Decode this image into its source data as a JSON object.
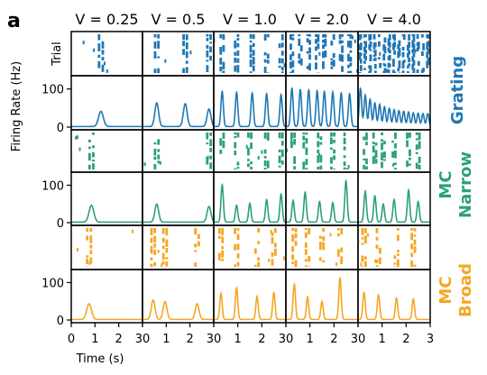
{
  "panel_label": "a",
  "chart_data": {
    "type": "raster+psth-grid",
    "columns": [
      "V = 0.25",
      "V = 0.5",
      "V = 1.0",
      "V = 2.0",
      "V = 4.0"
    ],
    "rows": [
      {
        "stimulus_label": [
          "Grating"
        ],
        "color": "#1f77b4"
      },
      {
        "stimulus_label": [
          "MC",
          "Narrow"
        ],
        "color": "#2ca07a"
      },
      {
        "stimulus_label": [
          "MC",
          "Broad"
        ],
        "color": "#f5a623"
      }
    ],
    "raster_ylabel": "Trial",
    "rate_ylabel": "Firing Rate (Hz)",
    "rate_yticks": [
      0,
      100
    ],
    "ylim": [
      0,
      130
    ],
    "xlabel": "Time (s)",
    "xlim": [
      0,
      3
    ],
    "xticks": [
      0,
      1,
      2,
      3
    ],
    "xticklabels": [
      "0",
      "1",
      "2",
      "30",
      "1",
      "2",
      "30",
      "1",
      "2",
      "30",
      "1",
      "2",
      "30",
      "1",
      "2",
      "3"
    ],
    "psth_peaks": [
      [
        [
          {
            "t": 1.25,
            "rate": 40
          }
        ],
        [
          {
            "t": 0.6,
            "rate": 62
          },
          {
            "t": 1.8,
            "rate": 60
          },
          {
            "t": 2.8,
            "rate": 46
          }
        ],
        [
          {
            "t": 0.35,
            "rate": 92
          },
          {
            "t": 0.95,
            "rate": 90
          },
          {
            "t": 1.6,
            "rate": 88
          },
          {
            "t": 2.2,
            "rate": 86
          },
          {
            "t": 2.8,
            "rate": 84
          }
        ],
        [
          {
            "t": 0.25,
            "rate": 100
          },
          {
            "t": 0.6,
            "rate": 98
          },
          {
            "t": 0.95,
            "rate": 96
          },
          {
            "t": 1.3,
            "rate": 94
          },
          {
            "t": 1.6,
            "rate": 92
          },
          {
            "t": 1.95,
            "rate": 90
          },
          {
            "t": 2.3,
            "rate": 88
          },
          {
            "t": 2.65,
            "rate": 86
          }
        ],
        [
          {
            "t": 0.1,
            "rate": 100
          },
          {
            "t": 0.3,
            "rate": 82
          },
          {
            "t": 0.5,
            "rate": 72
          },
          {
            "t": 0.7,
            "rate": 62
          },
          {
            "t": 0.9,
            "rate": 58
          },
          {
            "t": 1.1,
            "rate": 52
          },
          {
            "t": 1.3,
            "rate": 48
          },
          {
            "t": 1.5,
            "rate": 44
          },
          {
            "t": 1.7,
            "rate": 42
          },
          {
            "t": 1.9,
            "rate": 40
          },
          {
            "t": 2.1,
            "rate": 38
          },
          {
            "t": 2.3,
            "rate": 36
          },
          {
            "t": 2.5,
            "rate": 35
          },
          {
            "t": 2.7,
            "rate": 34
          },
          {
            "t": 2.9,
            "rate": 34
          }
        ]
      ],
      [
        [
          {
            "t": 0.85,
            "rate": 45
          }
        ],
        [
          {
            "t": 0.6,
            "rate": 48
          },
          {
            "t": 2.8,
            "rate": 42
          }
        ],
        [
          {
            "t": 0.35,
            "rate": 100
          },
          {
            "t": 0.95,
            "rate": 45
          },
          {
            "t": 1.5,
            "rate": 50
          },
          {
            "t": 2.2,
            "rate": 60
          },
          {
            "t": 2.8,
            "rate": 75
          }
        ],
        [
          {
            "t": 0.3,
            "rate": 58
          },
          {
            "t": 0.8,
            "rate": 80
          },
          {
            "t": 1.4,
            "rate": 55
          },
          {
            "t": 1.95,
            "rate": 52
          },
          {
            "t": 2.5,
            "rate": 110
          }
        ],
        [
          {
            "t": 0.3,
            "rate": 82
          },
          {
            "t": 0.7,
            "rate": 70
          },
          {
            "t": 1.05,
            "rate": 48
          },
          {
            "t": 1.5,
            "rate": 60
          },
          {
            "t": 2.1,
            "rate": 85
          },
          {
            "t": 2.5,
            "rate": 55
          }
        ]
      ],
      [
        [
          {
            "t": 0.75,
            "rate": 42
          }
        ],
        [
          {
            "t": 0.45,
            "rate": 52
          },
          {
            "t": 0.95,
            "rate": 48
          },
          {
            "t": 2.3,
            "rate": 42
          }
        ],
        [
          {
            "t": 0.3,
            "rate": 70
          },
          {
            "t": 0.95,
            "rate": 85
          },
          {
            "t": 1.8,
            "rate": 62
          },
          {
            "t": 2.5,
            "rate": 72
          }
        ],
        [
          {
            "t": 0.35,
            "rate": 95
          },
          {
            "t": 0.9,
            "rate": 60
          },
          {
            "t": 1.5,
            "rate": 48
          },
          {
            "t": 2.25,
            "rate": 112
          }
        ],
        [
          {
            "t": 0.25,
            "rate": 72
          },
          {
            "t": 0.85,
            "rate": 66
          },
          {
            "t": 1.6,
            "rate": 58
          },
          {
            "t": 2.3,
            "rate": 55
          }
        ]
      ]
    ]
  }
}
